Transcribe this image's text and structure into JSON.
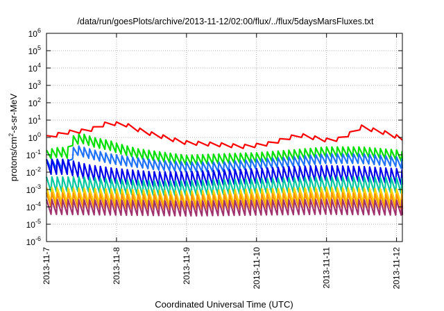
{
  "chart_data": {
    "type": "line",
    "title": "/data/run/goesPlots/archive/2013-11-12/02:00/flux/../flux/5daysMarsFluxes.txt",
    "xlabel": "Coordinated Universal Time (UTC)",
    "ylabel": {
      "base": "protons/cm",
      "sup": "2",
      "rest": "-s-sr-MeV"
    },
    "yscale": "log",
    "ylim_exponents": [
      -6,
      6
    ],
    "xlim": [
      "2013-11-07 00:00",
      "2013-11-12 02:00"
    ],
    "x_tick_labels": [
      "2013-11-7",
      "2013-11-8",
      "2013-11-9",
      "2013-11-10",
      "2013-11-11",
      "2013-11-12"
    ],
    "y_tick_labels": [
      {
        "base": "10",
        "exp": "-6"
      },
      {
        "base": "10",
        "exp": "-5"
      },
      {
        "base": "10",
        "exp": "-4"
      },
      {
        "base": "10",
        "exp": "-3"
      },
      {
        "base": "10",
        "exp": "-2"
      },
      {
        "base": "10",
        "exp": "-1"
      },
      {
        "base": "10",
        "exp": "0"
      },
      {
        "base": "10",
        "exp": "1"
      },
      {
        "base": "10",
        "exp": "2"
      },
      {
        "base": "10",
        "exp": "3"
      },
      {
        "base": "10",
        "exp": "4"
      },
      {
        "base": "10",
        "exp": "5"
      },
      {
        "base": "10",
        "exp": "6"
      }
    ],
    "grid": true,
    "legend": "none",
    "series_notes": "values estimated from the image; approximate sawtooth profile with ~13 cycles per day",
    "series": [
      {
        "color": "#ff0000",
        "cycles_per_day": 6,
        "x": [
          0.0,
          0.3,
          0.6,
          0.9,
          1.0,
          1.1,
          1.2,
          1.35,
          1.5,
          1.7,
          1.9,
          2.0,
          2.2,
          2.4,
          2.6,
          2.8,
          3.0,
          3.2,
          3.4,
          3.6,
          3.8,
          4.0,
          4.2,
          4.5,
          4.7,
          4.9,
          5.0,
          5.08
        ],
        "y": [
          1.0,
          2.0,
          2.5,
          7.5,
          6.0,
          6.5,
          4.0,
          2.5,
          1.6,
          1.0,
          0.6,
          0.5,
          0.45,
          0.4,
          0.35,
          0.3,
          0.35,
          0.45,
          0.8,
          1.4,
          1.0,
          0.7,
          0.8,
          4.0,
          2.5,
          1.6,
          1.1,
          0.9
        ]
      },
      {
        "color": "#00e000",
        "cycles_per_day": 13,
        "x": [
          0.0,
          0.2,
          0.3,
          0.35,
          0.5,
          0.7,
          0.9,
          1.0,
          1.3,
          1.6,
          2.0,
          2.5,
          3.0,
          3.5,
          4.0,
          4.5,
          5.0,
          5.08
        ],
        "y": [
          0.1,
          0.15,
          0.12,
          0.6,
          0.9,
          0.5,
          0.35,
          0.25,
          0.12,
          0.08,
          0.05,
          0.06,
          0.07,
          0.1,
          0.15,
          0.15,
          0.1,
          0.08
        ]
      },
      {
        "color": "#1e72ff",
        "cycles_per_day": 13,
        "x": [
          0.0,
          0.25,
          0.3,
          0.4,
          0.6,
          0.9,
          1.2,
          1.6,
          2.0,
          2.5,
          3.0,
          3.5,
          4.0,
          4.5,
          5.0,
          5.08
        ],
        "y": [
          0.03,
          0.03,
          0.02,
          0.2,
          0.12,
          0.06,
          0.04,
          0.025,
          0.02,
          0.02,
          0.03,
          0.04,
          0.06,
          0.06,
          0.04,
          0.03
        ]
      },
      {
        "color": "#0000ee",
        "cycles_per_day": 13,
        "x": [
          0.0,
          0.3,
          0.6,
          1.0,
          1.5,
          2.0,
          2.5,
          3.0,
          3.5,
          4.0,
          4.5,
          5.0,
          5.08
        ],
        "y": [
          0.02,
          0.02,
          0.01,
          0.006,
          0.004,
          0.004,
          0.005,
          0.006,
          0.008,
          0.009,
          0.008,
          0.006,
          0.005
        ]
      },
      {
        "color": "#00c8a0",
        "cycles_per_day": 13,
        "x": [
          0.0,
          0.5,
          1.0,
          1.5,
          2.0,
          2.5,
          3.0,
          3.5,
          4.0,
          4.5,
          5.0,
          5.08
        ],
        "y": [
          0.002,
          0.002,
          0.0015,
          0.0012,
          0.0012,
          0.0014,
          0.0016,
          0.0018,
          0.002,
          0.002,
          0.0018,
          0.0016
        ]
      },
      {
        "color": "#ffd400",
        "cycles_per_day": 13,
        "x": [
          0.0,
          1.0,
          2.0,
          3.0,
          4.0,
          5.0,
          5.08
        ],
        "y": [
          0.0005,
          0.0004,
          0.0003,
          0.0004,
          0.0005,
          0.0004,
          0.0004
        ]
      },
      {
        "color": "#ff9000",
        "cycles_per_day": 13,
        "x": [
          0.0,
          1.0,
          2.0,
          3.0,
          4.0,
          5.0,
          5.08
        ],
        "y": [
          0.00025,
          0.0002,
          0.00018,
          0.0002,
          0.00025,
          0.0002,
          0.0002
        ]
      },
      {
        "color": "#a0336e",
        "cycles_per_day": 13,
        "x": [
          0.0,
          1.0,
          2.0,
          3.0,
          4.0,
          5.0,
          5.08
        ],
        "y": [
          0.0001,
          9e-05,
          8e-05,
          9e-05,
          0.0001,
          9e-05,
          9e-05
        ]
      }
    ]
  }
}
